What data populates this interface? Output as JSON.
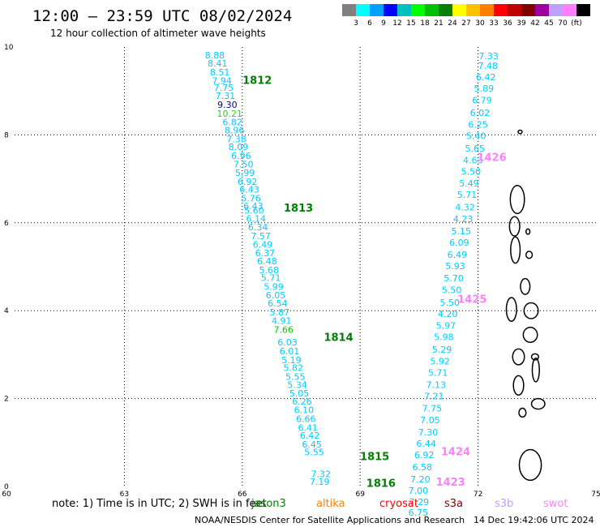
{
  "title": "12:00 — 23:59 UTC 08/02/2024",
  "subtitle": "12 hour collection of altimeter wave heights",
  "colorbar": {
    "colors": [
      "#808080",
      "#00ffff",
      "#00a0ff",
      "#0000ff",
      "#00c0c0",
      "#00ff00",
      "#00c000",
      "#008000",
      "#ffff00",
      "#ffc000",
      "#ff8000",
      "#ff0000",
      "#c00000",
      "#800000",
      "#a000a0",
      "#c0a0ff",
      "#ff80ff",
      "#000000"
    ],
    "labels": [
      "3",
      "6",
      "9",
      "12",
      "15",
      "18",
      "21",
      "24",
      "27",
      "30",
      "33",
      "36",
      "39",
      "42",
      "45",
      "70",
      "(ft)"
    ]
  },
  "chart_data": {
    "type": "map",
    "x_range": [
      60,
      75
    ],
    "y_range": [
      0,
      10
    ],
    "x_ticks": [
      "60",
      "63",
      "66",
      "69",
      "72",
      "75"
    ],
    "y_ticks": [
      "0",
      "2",
      "4",
      "6",
      "8",
      "10"
    ],
    "swh_colors": {
      "cyan": "#00ccff",
      "blue": "#0000aa",
      "green": "#00cc00",
      "lime": "#33cc33"
    },
    "tracks": [
      {
        "color": "#00ccff",
        "points": [
          {
            "x": 65.3,
            "y": 9.82,
            "v": "8.88"
          },
          {
            "x": 65.37,
            "y": 9.63,
            "v": "8.41"
          },
          {
            "x": 65.43,
            "y": 9.43,
            "v": "8.51"
          },
          {
            "x": 65.48,
            "y": 9.23,
            "v": "7.94"
          },
          {
            "x": 65.53,
            "y": 9.08,
            "v": "7.75"
          },
          {
            "x": 65.57,
            "y": 8.89,
            "v": "7.31"
          },
          {
            "x": 65.62,
            "y": 8.69,
            "c": "#0000aa",
            "v": "9.30"
          },
          {
            "x": 65.68,
            "y": 8.49,
            "c": "#33cc33",
            "v": "10.21"
          },
          {
            "x": 65.75,
            "y": 8.29,
            "v": "6.82"
          },
          {
            "x": 65.8,
            "y": 8.11,
            "v": "8.96"
          },
          {
            "x": 65.85,
            "y": 7.91,
            "v": "7.38"
          },
          {
            "x": 65.9,
            "y": 7.73,
            "v": "8.09"
          },
          {
            "x": 65.97,
            "y": 7.53,
            "v": "6.96"
          },
          {
            "x": 66.03,
            "y": 7.33,
            "v": "7.50"
          },
          {
            "x": 66.07,
            "y": 7.14,
            "v": "5.99"
          },
          {
            "x": 66.13,
            "y": 6.94,
            "v": "6.92"
          },
          {
            "x": 66.18,
            "y": 6.76,
            "v": "6.43"
          },
          {
            "x": 66.22,
            "y": 6.56,
            "v": "5.76"
          },
          {
            "x": 66.28,
            "y": 6.38,
            "v": "6.43"
          },
          {
            "x": 66.3,
            "y": 6.28,
            "v": "5.60"
          },
          {
            "x": 66.35,
            "y": 6.1,
            "v": "6.14"
          },
          {
            "x": 66.4,
            "y": 5.9,
            "v": "6.34"
          },
          {
            "x": 66.47,
            "y": 5.7,
            "v": "7.57"
          },
          {
            "x": 66.52,
            "y": 5.51,
            "v": "6.49"
          },
          {
            "x": 66.58,
            "y": 5.31,
            "v": "6.37"
          },
          {
            "x": 66.63,
            "y": 5.13,
            "v": "6.48"
          },
          {
            "x": 66.68,
            "y": 4.93,
            "v": "5.68"
          },
          {
            "x": 66.73,
            "y": 4.75,
            "v": "5.71"
          },
          {
            "x": 66.8,
            "y": 4.55,
            "v": "5.99"
          },
          {
            "x": 66.85,
            "y": 4.35,
            "v": "6.05"
          },
          {
            "x": 66.9,
            "y": 4.17,
            "v": "6.54"
          },
          {
            "x": 66.95,
            "y": 3.97,
            "v": "5.87"
          },
          {
            "x": 67.0,
            "y": 3.77,
            "v": "4.91"
          },
          {
            "x": 67.05,
            "y": 3.57,
            "c": "#00cc00",
            "v": "7.66"
          },
          {
            "x": 67.15,
            "y": 3.28,
            "v": "6.03"
          },
          {
            "x": 67.2,
            "y": 3.08,
            "v": "6.01"
          },
          {
            "x": 67.25,
            "y": 2.88,
            "v": "5.19"
          },
          {
            "x": 67.3,
            "y": 2.7,
            "v": "5.82"
          },
          {
            "x": 67.35,
            "y": 2.5,
            "v": "5.55"
          },
          {
            "x": 67.4,
            "y": 2.32,
            "v": "5.34"
          },
          {
            "x": 67.45,
            "y": 2.12,
            "v": "5.05"
          },
          {
            "x": 67.52,
            "y": 1.94,
            "v": "6.26"
          },
          {
            "x": 67.57,
            "y": 1.74,
            "v": "6.10"
          },
          {
            "x": 67.62,
            "y": 1.54,
            "v": "6.66"
          },
          {
            "x": 67.67,
            "y": 1.34,
            "v": "6.41"
          },
          {
            "x": 67.72,
            "y": 1.16,
            "v": "6.42"
          },
          {
            "x": 67.77,
            "y": 0.96,
            "v": "6.45"
          },
          {
            "x": 67.83,
            "y": 0.78,
            "v": "5.55"
          },
          {
            "x": 68.0,
            "y": 0.29,
            "v": "7.32"
          },
          {
            "x": 67.97,
            "y": 0.11,
            "v": "7.19"
          }
        ]
      },
      {
        "color": "#00ccff",
        "points": [
          {
            "x": 72.27,
            "y": 9.8,
            "v": "7.33"
          },
          {
            "x": 72.25,
            "y": 9.58,
            "v": "7.48"
          },
          {
            "x": 72.2,
            "y": 9.32,
            "v": "6.42"
          },
          {
            "x": 72.15,
            "y": 9.06,
            "v": "5.89"
          },
          {
            "x": 72.1,
            "y": 8.79,
            "v": "6.79"
          },
          {
            "x": 72.05,
            "y": 8.51,
            "v": "6.02"
          },
          {
            "x": 72.0,
            "y": 8.24,
            "v": "6.25"
          },
          {
            "x": 71.95,
            "y": 7.98,
            "v": "5.40"
          },
          {
            "x": 71.92,
            "y": 7.69,
            "v": "5.65"
          },
          {
            "x": 71.87,
            "y": 7.43,
            "v": "4.63"
          },
          {
            "x": 71.82,
            "y": 7.17,
            "v": "5.50"
          },
          {
            "x": 71.77,
            "y": 6.9,
            "v": "5.49"
          },
          {
            "x": 71.72,
            "y": 6.64,
            "v": "5.71"
          },
          {
            "x": 71.67,
            "y": 6.36,
            "v": "4.32"
          },
          {
            "x": 71.62,
            "y": 6.09,
            "v": "4.23"
          },
          {
            "x": 71.57,
            "y": 5.81,
            "v": "5.15"
          },
          {
            "x": 71.52,
            "y": 5.55,
            "v": "6.09"
          },
          {
            "x": 71.47,
            "y": 5.28,
            "v": "6.49"
          },
          {
            "x": 71.42,
            "y": 5.02,
            "v": "5.93"
          },
          {
            "x": 71.38,
            "y": 4.74,
            "v": "5.70"
          },
          {
            "x": 71.33,
            "y": 4.47,
            "v": "5.50"
          },
          {
            "x": 71.28,
            "y": 4.19,
            "v": "5.50"
          },
          {
            "x": 71.23,
            "y": 3.93,
            "v": "4.20"
          },
          {
            "x": 71.18,
            "y": 3.66,
            "v": "5.97"
          },
          {
            "x": 71.13,
            "y": 3.4,
            "v": "5.98"
          },
          {
            "x": 71.08,
            "y": 3.12,
            "v": "5.29"
          },
          {
            "x": 71.03,
            "y": 2.85,
            "v": "5.92"
          },
          {
            "x": 70.98,
            "y": 2.59,
            "v": "5.71"
          },
          {
            "x": 70.93,
            "y": 2.32,
            "v": "7.13"
          },
          {
            "x": 70.88,
            "y": 2.06,
            "v": "7.21"
          },
          {
            "x": 70.83,
            "y": 1.78,
            "v": "7.75"
          },
          {
            "x": 70.78,
            "y": 1.51,
            "v": "7.05"
          },
          {
            "x": 70.73,
            "y": 1.24,
            "v": "7.30"
          },
          {
            "x": 70.68,
            "y": 0.98,
            "v": "6.44"
          },
          {
            "x": 70.63,
            "y": 0.72,
            "v": "6.92"
          },
          {
            "x": 70.58,
            "y": 0.44,
            "v": "6.58"
          },
          {
            "x": 70.53,
            "y": 0.17,
            "v": "7.20"
          },
          {
            "x": 70.48,
            "y": -0.09,
            "v": "7.00"
          },
          {
            "x": 70.5,
            "y": -0.35,
            "v": "7.29"
          },
          {
            "x": 70.48,
            "y": -0.59,
            "v": "6.75"
          }
        ]
      }
    ],
    "pass_labels": [
      {
        "text": "1812",
        "x": 66.38,
        "y": 9.25,
        "c": "#008000"
      },
      {
        "text": "1813",
        "x": 67.43,
        "y": 6.35,
        "c": "#008000"
      },
      {
        "text": "1814",
        "x": 68.45,
        "y": 3.4,
        "c": "#008000"
      },
      {
        "text": "1815",
        "x": 69.37,
        "y": 0.69,
        "c": "#008000"
      },
      {
        "text": "1816",
        "x": 69.53,
        "y": 0.08,
        "c": "#008000"
      },
      {
        "text": "1426",
        "x": 72.35,
        "y": 7.5,
        "c": "#ff80ff"
      },
      {
        "text": "1425",
        "x": 71.85,
        "y": 4.27,
        "c": "#ff80ff"
      },
      {
        "text": "1424",
        "x": 71.43,
        "y": 0.8,
        "c": "#ff80ff"
      },
      {
        "text": "1423",
        "x": 71.3,
        "y": 0.11,
        "c": "#ff80ff"
      }
    ],
    "islands": [
      {
        "x": 73.07,
        "y": 8.07,
        "rx": 0.05,
        "ry": 0.04
      },
      {
        "x": 73.0,
        "y": 6.53,
        "rx": 0.18,
        "ry": 0.32
      },
      {
        "x": 72.93,
        "y": 5.92,
        "rx": 0.13,
        "ry": 0.22
      },
      {
        "x": 72.95,
        "y": 5.38,
        "rx": 0.12,
        "ry": 0.3
      },
      {
        "x": 73.27,
        "y": 5.8,
        "rx": 0.05,
        "ry": 0.06
      },
      {
        "x": 73.3,
        "y": 5.27,
        "rx": 0.08,
        "ry": 0.08
      },
      {
        "x": 73.2,
        "y": 4.55,
        "rx": 0.12,
        "ry": 0.18
      },
      {
        "x": 72.85,
        "y": 4.03,
        "rx": 0.13,
        "ry": 0.27
      },
      {
        "x": 73.35,
        "y": 4.0,
        "rx": 0.18,
        "ry": 0.18
      },
      {
        "x": 73.33,
        "y": 3.45,
        "rx": 0.18,
        "ry": 0.17
      },
      {
        "x": 73.03,
        "y": 2.95,
        "rx": 0.15,
        "ry": 0.18
      },
      {
        "x": 73.45,
        "y": 2.95,
        "rx": 0.09,
        "ry": 0.07
      },
      {
        "x": 73.03,
        "y": 2.3,
        "rx": 0.13,
        "ry": 0.22
      },
      {
        "x": 73.47,
        "y": 2.65,
        "rx": 0.09,
        "ry": 0.27
      },
      {
        "x": 73.13,
        "y": 1.68,
        "rx": 0.09,
        "ry": 0.1
      },
      {
        "x": 73.53,
        "y": 1.88,
        "rx": 0.17,
        "ry": 0.12
      },
      {
        "x": 73.33,
        "y": 0.49,
        "rx": 0.28,
        "ry": 0.35
      }
    ]
  },
  "note": "note: 1) Time is in UTC; 2) SWH is in feet",
  "satellites": [
    {
      "label": "jason3",
      "color": "#008000"
    },
    {
      "label": "altika",
      "color": "#ff8000"
    },
    {
      "label": "cryosat",
      "color": "#ff0000"
    },
    {
      "label": "s3a",
      "color": "#800000"
    },
    {
      "label": "s3b",
      "color": "#c0a0ff"
    },
    {
      "label": "swot",
      "color": "#ff80ff"
    }
  ],
  "footer": {
    "credit": "NOAA/NESDIS Center for Satellite Applications and Research",
    "timestamp": "14 Dec 19:42:06 UTC 2024"
  }
}
